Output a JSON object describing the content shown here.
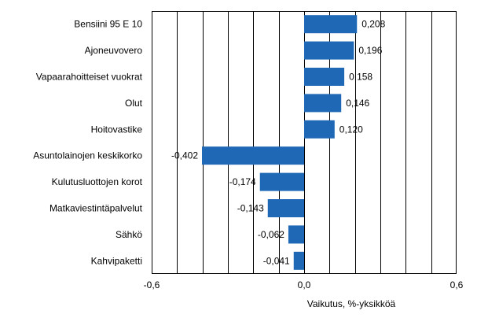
{
  "chart_data": {
    "type": "bar",
    "orientation": "horizontal",
    "title": "",
    "xlabel": "Vaikutus, %-yksikköä",
    "ylabel": "",
    "categories": [
      "Bensiini 95 E 10",
      "Ajoneuvovero",
      "Vapaarahoitteiset vuokrat",
      "Olut",
      "Hoitovastike",
      "Asuntolainojen keskikorko",
      "Kulutusluottojen korot",
      "Matkaviestintäpalvelut",
      "Sähkö",
      "Kahvipaketti"
    ],
    "values": [
      0.208,
      0.196,
      0.158,
      0.146,
      0.12,
      -0.402,
      -0.174,
      -0.143,
      -0.062,
      -0.041
    ],
    "value_labels": [
      "0,208",
      "0,196",
      "0,158",
      "0,146",
      "0,120",
      "-0,402",
      "-0,174",
      "-0,143",
      "-0,062",
      "-0,041"
    ],
    "xlim": [
      -0.6,
      0.6
    ],
    "xticks": [
      -0.6,
      0.0,
      0.6
    ],
    "xtick_labels": [
      "-0,6",
      "0,0",
      "0,6"
    ],
    "gridline_step": 0.1,
    "grid": true,
    "legend": "none",
    "colors": {
      "bar": "#1f68b5",
      "grid": "#000000",
      "frame": "#000000"
    }
  }
}
